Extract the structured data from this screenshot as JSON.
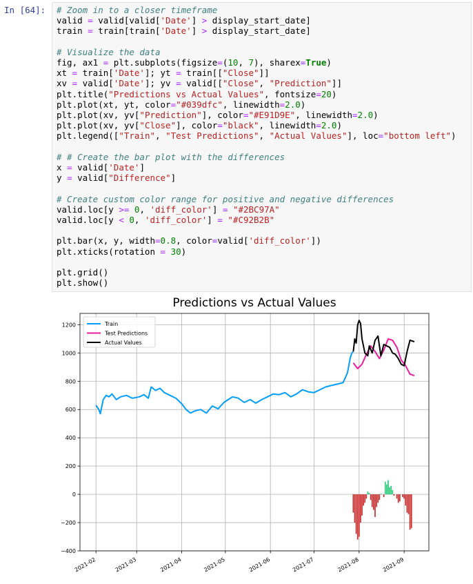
{
  "cell": {
    "prompt": "In [64]:",
    "code_lines": [
      [
        {
          "t": "# Zoom in to a closer timeframe",
          "c": "cm"
        }
      ],
      [
        {
          "t": "valid "
        },
        {
          "t": "=",
          "c": "op"
        },
        {
          "t": " valid[valid["
        },
        {
          "t": "'Date'",
          "c": "str"
        },
        {
          "t": "] "
        },
        {
          "t": ">",
          "c": "op"
        },
        {
          "t": " display_start_date]"
        }
      ],
      [
        {
          "t": "train "
        },
        {
          "t": "=",
          "c": "op"
        },
        {
          "t": " train[train["
        },
        {
          "t": "'Date'",
          "c": "str"
        },
        {
          "t": "] "
        },
        {
          "t": ">",
          "c": "op"
        },
        {
          "t": " display_start_date]"
        }
      ],
      [
        {
          "t": ""
        }
      ],
      [
        {
          "t": "# Visualize the data",
          "c": "cm"
        }
      ],
      [
        {
          "t": "fig, ax1 "
        },
        {
          "t": "=",
          "c": "op"
        },
        {
          "t": " plt.subplots(figsize"
        },
        {
          "t": "=",
          "c": "op"
        },
        {
          "t": "("
        },
        {
          "t": "10",
          "c": "num"
        },
        {
          "t": ", "
        },
        {
          "t": "7",
          "c": "num"
        },
        {
          "t": "), sharex"
        },
        {
          "t": "=",
          "c": "op"
        },
        {
          "t": "True",
          "c": "kw"
        },
        {
          "t": ")"
        }
      ],
      [
        {
          "t": "xt "
        },
        {
          "t": "=",
          "c": "op"
        },
        {
          "t": " train["
        },
        {
          "t": "'Date'",
          "c": "str"
        },
        {
          "t": "]; yt "
        },
        {
          "t": "=",
          "c": "op"
        },
        {
          "t": " train[["
        },
        {
          "t": "\"Close\"",
          "c": "str"
        },
        {
          "t": "]]"
        }
      ],
      [
        {
          "t": "xv "
        },
        {
          "t": "=",
          "c": "op"
        },
        {
          "t": " valid["
        },
        {
          "t": "'Date'",
          "c": "str"
        },
        {
          "t": "]; yv "
        },
        {
          "t": "=",
          "c": "op"
        },
        {
          "t": " valid[["
        },
        {
          "t": "\"Close\"",
          "c": "str"
        },
        {
          "t": ", "
        },
        {
          "t": "\"Prediction\"",
          "c": "str"
        },
        {
          "t": "]]"
        }
      ],
      [
        {
          "t": "plt.title("
        },
        {
          "t": "\"Predictions vs Actual Values\"",
          "c": "str"
        },
        {
          "t": ", fontsize"
        },
        {
          "t": "=",
          "c": "op"
        },
        {
          "t": "20",
          "c": "num"
        },
        {
          "t": ")"
        }
      ],
      [
        {
          "t": "plt.plot(xt, yt, color"
        },
        {
          "t": "=",
          "c": "op"
        },
        {
          "t": "\"#039dfc\"",
          "c": "str"
        },
        {
          "t": ", linewidth"
        },
        {
          "t": "=",
          "c": "op"
        },
        {
          "t": "2.0",
          "c": "num"
        },
        {
          "t": ")"
        }
      ],
      [
        {
          "t": "plt.plot(xv, yv["
        },
        {
          "t": "\"Prediction\"",
          "c": "str"
        },
        {
          "t": "], color"
        },
        {
          "t": "=",
          "c": "op"
        },
        {
          "t": "\"#E91D9E\"",
          "c": "str"
        },
        {
          "t": ", linewidth"
        },
        {
          "t": "=",
          "c": "op"
        },
        {
          "t": "2.0",
          "c": "num"
        },
        {
          "t": ")"
        }
      ],
      [
        {
          "t": "plt.plot(xv, yv["
        },
        {
          "t": "\"Close\"",
          "c": "str"
        },
        {
          "t": "], color"
        },
        {
          "t": "=",
          "c": "op"
        },
        {
          "t": "\"black\"",
          "c": "str"
        },
        {
          "t": ", linewidth"
        },
        {
          "t": "=",
          "c": "op"
        },
        {
          "t": "2.0",
          "c": "num"
        },
        {
          "t": ")"
        }
      ],
      [
        {
          "t": "plt.legend(["
        },
        {
          "t": "\"Train\"",
          "c": "str"
        },
        {
          "t": ", "
        },
        {
          "t": "\"Test Predictions\"",
          "c": "str"
        },
        {
          "t": ", "
        },
        {
          "t": "\"Actual Values\"",
          "c": "str"
        },
        {
          "t": "], loc"
        },
        {
          "t": "=",
          "c": "op"
        },
        {
          "t": "\"bottom left\"",
          "c": "str"
        },
        {
          "t": ")"
        }
      ],
      [
        {
          "t": ""
        }
      ],
      [
        {
          "t": "# # Create the bar plot with the differences",
          "c": "cm"
        }
      ],
      [
        {
          "t": "x "
        },
        {
          "t": "=",
          "c": "op"
        },
        {
          "t": " valid["
        },
        {
          "t": "'Date'",
          "c": "str"
        },
        {
          "t": "]"
        }
      ],
      [
        {
          "t": "y "
        },
        {
          "t": "=",
          "c": "op"
        },
        {
          "t": " valid["
        },
        {
          "t": "\"Difference\"",
          "c": "str"
        },
        {
          "t": "]"
        }
      ],
      [
        {
          "t": ""
        }
      ],
      [
        {
          "t": "# Create custom color range for positive and negative differences",
          "c": "cm"
        }
      ],
      [
        {
          "t": "valid.loc[y "
        },
        {
          "t": ">=",
          "c": "op"
        },
        {
          "t": " "
        },
        {
          "t": "0",
          "c": "num"
        },
        {
          "t": ", "
        },
        {
          "t": "'diff_color'",
          "c": "str"
        },
        {
          "t": "] "
        },
        {
          "t": "=",
          "c": "op"
        },
        {
          "t": " "
        },
        {
          "t": "\"#2BC97A\"",
          "c": "str"
        }
      ],
      [
        {
          "t": "valid.loc[y "
        },
        {
          "t": "<",
          "c": "op"
        },
        {
          "t": " "
        },
        {
          "t": "0",
          "c": "num"
        },
        {
          "t": ", "
        },
        {
          "t": "'diff_color'",
          "c": "str"
        },
        {
          "t": "] "
        },
        {
          "t": "=",
          "c": "op"
        },
        {
          "t": " "
        },
        {
          "t": "\"#C92B2B\"",
          "c": "str"
        }
      ],
      [
        {
          "t": ""
        }
      ],
      [
        {
          "t": "plt.bar(x, y, width"
        },
        {
          "t": "=",
          "c": "op"
        },
        {
          "t": "0.8",
          "c": "num"
        },
        {
          "t": ", color"
        },
        {
          "t": "=",
          "c": "op"
        },
        {
          "t": "valid["
        },
        {
          "t": "'diff_color'",
          "c": "str"
        },
        {
          "t": "])"
        }
      ],
      [
        {
          "t": "plt.xticks(rotation "
        },
        {
          "t": "=",
          "c": "op"
        },
        {
          "t": " "
        },
        {
          "t": "30",
          "c": "num"
        },
        {
          "t": ")"
        }
      ],
      [
        {
          "t": ""
        }
      ],
      [
        {
          "t": "plt.grid()"
        }
      ],
      [
        {
          "t": "plt.show()"
        }
      ]
    ]
  },
  "chart_data": {
    "type": "line",
    "title": "Predictions vs Actual Values",
    "xlabel": "",
    "ylabel": "",
    "ylim": [
      -400,
      1280
    ],
    "xlim": [
      "2021-01-21",
      "2021-09-18"
    ],
    "x_tick_labels": [
      "2021-02",
      "2021-03",
      "2021-04",
      "2021-05",
      "2021-06",
      "2021-07",
      "2021-08",
      "2021-09"
    ],
    "x_tick_dates": [
      "2021-02-01",
      "2021-03-01",
      "2021-04-01",
      "2021-05-01",
      "2021-06-01",
      "2021-07-01",
      "2021-08-01",
      "2021-09-01"
    ],
    "y_ticks": [
      -400,
      -200,
      0,
      200,
      400,
      600,
      800,
      1000,
      1200
    ],
    "y_tick_labels": [
      "−400",
      "−200",
      "0",
      "200",
      "400",
      "600",
      "800",
      "1000",
      "1200"
    ],
    "grid": true,
    "legend": {
      "placement": "top-left",
      "entries": [
        "Train",
        "Test Predictions",
        "Actual Values"
      ]
    },
    "series": [
      {
        "name": "Train",
        "color": "#039dfc",
        "points": [
          [
            "2021-02-01",
            630
          ],
          [
            "2021-02-03",
            600
          ],
          [
            "2021-02-04",
            570
          ],
          [
            "2021-02-06",
            670
          ],
          [
            "2021-02-08",
            700
          ],
          [
            "2021-02-10",
            690
          ],
          [
            "2021-02-12",
            710
          ],
          [
            "2021-02-15",
            670
          ],
          [
            "2021-02-18",
            690
          ],
          [
            "2021-02-22",
            700
          ],
          [
            "2021-02-26",
            680
          ],
          [
            "2021-03-03",
            690
          ],
          [
            "2021-03-06",
            705
          ],
          [
            "2021-03-09",
            680
          ],
          [
            "2021-03-11",
            760
          ],
          [
            "2021-03-14",
            735
          ],
          [
            "2021-03-17",
            750
          ],
          [
            "2021-03-20",
            720
          ],
          [
            "2021-03-24",
            700
          ],
          [
            "2021-03-28",
            680
          ],
          [
            "2021-04-01",
            640
          ],
          [
            "2021-04-04",
            600
          ],
          [
            "2021-04-07",
            575
          ],
          [
            "2021-04-10",
            590
          ],
          [
            "2021-04-14",
            600
          ],
          [
            "2021-04-18",
            575
          ],
          [
            "2021-04-22",
            625
          ],
          [
            "2021-04-26",
            605
          ],
          [
            "2021-04-30",
            650
          ],
          [
            "2021-05-03",
            670
          ],
          [
            "2021-05-06",
            690
          ],
          [
            "2021-05-10",
            680
          ],
          [
            "2021-05-14",
            650
          ],
          [
            "2021-05-18",
            670
          ],
          [
            "2021-05-22",
            645
          ],
          [
            "2021-05-26",
            670
          ],
          [
            "2021-05-30",
            690
          ],
          [
            "2021-06-03",
            710
          ],
          [
            "2021-06-07",
            705
          ],
          [
            "2021-06-11",
            720
          ],
          [
            "2021-06-15",
            690
          ],
          [
            "2021-06-19",
            710
          ],
          [
            "2021-06-23",
            740
          ],
          [
            "2021-06-27",
            725
          ],
          [
            "2021-07-01",
            720
          ],
          [
            "2021-07-05",
            740
          ],
          [
            "2021-07-09",
            760
          ],
          [
            "2021-07-13",
            770
          ],
          [
            "2021-07-17",
            780
          ],
          [
            "2021-07-21",
            790
          ],
          [
            "2021-07-24",
            860
          ],
          [
            "2021-07-26",
            970
          ],
          [
            "2021-07-27",
            1000
          ],
          [
            "2021-07-28",
            1010
          ]
        ]
      },
      {
        "name": "Test Predictions",
        "color": "#E91D9E",
        "points": [
          [
            "2021-07-28",
            930
          ],
          [
            "2021-07-31",
            890
          ],
          [
            "2021-08-03",
            920
          ],
          [
            "2021-08-06",
            990
          ],
          [
            "2021-08-09",
            1050
          ],
          [
            "2021-08-12",
            1010
          ],
          [
            "2021-08-15",
            960
          ],
          [
            "2021-08-18",
            1020
          ],
          [
            "2021-08-21",
            1100
          ],
          [
            "2021-08-24",
            1090
          ],
          [
            "2021-08-27",
            1040
          ],
          [
            "2021-08-30",
            950
          ],
          [
            "2021-09-02",
            910
          ],
          [
            "2021-09-05",
            850
          ],
          [
            "2021-09-08",
            840
          ]
        ]
      },
      {
        "name": "Actual Values",
        "color": "#000000",
        "points": [
          [
            "2021-07-28",
            1010
          ],
          [
            "2021-07-29",
            1100
          ],
          [
            "2021-07-30",
            1070
          ],
          [
            "2021-07-31",
            1200
          ],
          [
            "2021-08-01",
            1230
          ],
          [
            "2021-08-02",
            1210
          ],
          [
            "2021-08-03",
            1100
          ],
          [
            "2021-08-05",
            1000
          ],
          [
            "2021-08-07",
            980
          ],
          [
            "2021-08-08",
            1050
          ],
          [
            "2021-08-10",
            1000
          ],
          [
            "2021-08-12",
            1090
          ],
          [
            "2021-08-14",
            1120
          ],
          [
            "2021-08-16",
            980
          ],
          [
            "2021-08-18",
            1060
          ],
          [
            "2021-08-20",
            1050
          ],
          [
            "2021-08-22",
            1040
          ],
          [
            "2021-08-24",
            1000
          ],
          [
            "2021-08-26",
            990
          ],
          [
            "2021-08-28",
            960
          ],
          [
            "2021-08-30",
            920
          ],
          [
            "2021-09-01",
            910
          ],
          [
            "2021-09-03",
            1010
          ],
          [
            "2021-09-05",
            1090
          ],
          [
            "2021-09-08",
            1080
          ]
        ]
      }
    ],
    "bars": {
      "name": "Difference",
      "positive_color": "#2BC97A",
      "negative_color": "#C92B2B",
      "points": [
        [
          "2021-07-28",
          -130
        ],
        [
          "2021-07-29",
          -200
        ],
        [
          "2021-07-30",
          -280
        ],
        [
          "2021-07-31",
          -320
        ],
        [
          "2021-08-01",
          -300
        ],
        [
          "2021-08-02",
          -200
        ],
        [
          "2021-08-03",
          -150
        ],
        [
          "2021-08-04",
          -80
        ],
        [
          "2021-08-05",
          -60
        ],
        [
          "2021-08-06",
          -30
        ],
        [
          "2021-08-07",
          20
        ],
        [
          "2021-08-08",
          10
        ],
        [
          "2021-08-09",
          -40
        ],
        [
          "2021-08-10",
          -90
        ],
        [
          "2021-08-11",
          -110
        ],
        [
          "2021-08-12",
          -160
        ],
        [
          "2021-08-13",
          -90
        ],
        [
          "2021-08-14",
          -60
        ],
        [
          "2021-08-15",
          -40
        ],
        [
          "2021-08-16",
          5
        ],
        [
          "2021-08-18",
          -20
        ],
        [
          "2021-08-19",
          90
        ],
        [
          "2021-08-20",
          70
        ],
        [
          "2021-08-21",
          100
        ],
        [
          "2021-08-22",
          50
        ],
        [
          "2021-08-23",
          60
        ],
        [
          "2021-08-24",
          30
        ],
        [
          "2021-08-25",
          -10
        ],
        [
          "2021-08-27",
          -30
        ],
        [
          "2021-08-28",
          -60
        ],
        [
          "2021-08-29",
          -50
        ],
        [
          "2021-08-31",
          -20
        ],
        [
          "2021-09-01",
          -30
        ],
        [
          "2021-09-02",
          -80
        ],
        [
          "2021-09-03",
          -130
        ],
        [
          "2021-09-04",
          -140
        ],
        [
          "2021-09-05",
          -250
        ],
        [
          "2021-09-06",
          -240
        ]
      ]
    }
  }
}
